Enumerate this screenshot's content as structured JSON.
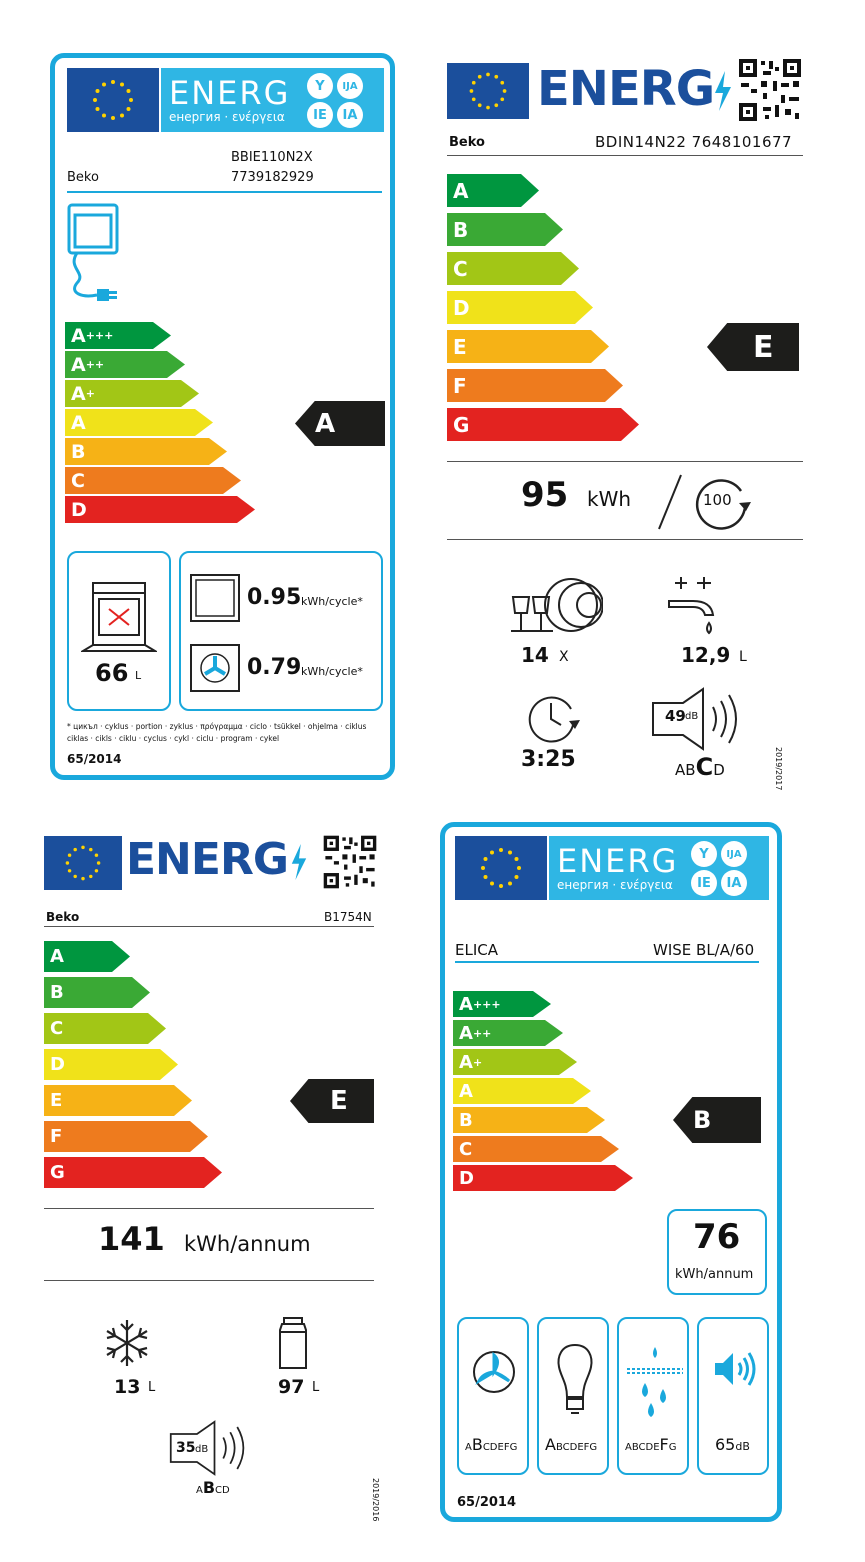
{
  "scale_classes_appliance": [
    "A+++",
    "A++",
    "A+",
    "A",
    "B",
    "C",
    "D"
  ],
  "scale_classes_new": [
    "A",
    "B",
    "C",
    "D",
    "E",
    "F",
    "G"
  ],
  "colors": {
    "cyan": "#1aa8dc",
    "flag": "#1b4f9c",
    "arrow": "#1d1d1b"
  },
  "label1": {
    "header_word": "ENERG",
    "header_sub": "енергия · ενέργεια",
    "header_circles": [
      "Y",
      "IJA",
      "IE",
      "IA"
    ],
    "brand": "Beko",
    "model": "BBIE110N2X",
    "code": "7739182929",
    "rating": "A",
    "volume_value": "66",
    "volume_unit": "L",
    "conv_value": "0.95",
    "fan_value": "0.79",
    "cycle_unit": "kWh/cycle*",
    "footnote_1": "* цикъл · cyklus · portion · zyklus · πρόγραμμα · ciclo · tsükkel · ohjelma · ciklus",
    "footnote_2": "ciklas · cikls · ciklu · cyclus · cykl · ciclu · program · cykel",
    "regulation": "65/2014"
  },
  "label2": {
    "header_word": "ENERG",
    "brand": "Beko",
    "model_code": "BDIN14N22 7648101677",
    "rating": "E",
    "consumption_value": "95",
    "consumption_unit": "kWh",
    "per_cycles": "100",
    "place_settings_value": "14",
    "place_settings_unit": "X",
    "water_value": "12,9",
    "water_unit": "L",
    "duration": "3:25",
    "noise_db": "49",
    "noise_unit": "dB",
    "noise_classes_pre": "AB",
    "noise_class": "C",
    "noise_classes_post": "D",
    "regulation": "2019/2017"
  },
  "label3": {
    "header_word": "ENERG",
    "brand": "Beko",
    "model": "B1754N",
    "rating": "E",
    "consumption_value": "141",
    "consumption_unit": "kWh/annum",
    "freezer_value": "13",
    "freezer_unit": "L",
    "fridge_value": "97",
    "fridge_unit": "L",
    "noise_db": "35",
    "noise_unit": "dB",
    "noise_classes_pre": "A",
    "noise_class": "B",
    "noise_classes_post": "CD",
    "regulation": "2019/2016"
  },
  "label4": {
    "header_word": "ENERG",
    "header_sub": "енергия · ενέργεια",
    "header_circles": [
      "Y",
      "IJA",
      "IE",
      "IA"
    ],
    "brand": "ELICA",
    "model": "WISE BL/A/60",
    "rating": "B",
    "consumption_value": "76",
    "consumption_unit": "kWh/annum",
    "fan_pre": "A",
    "fan_class": "B",
    "fan_post": "CDEFG",
    "light_class": "A",
    "light_post": "BCDEFG",
    "grease_pre": "ABCDE",
    "grease_class": "F",
    "grease_post": "G",
    "noise_value": "65",
    "noise_unit": "dB",
    "regulation": "65/2014"
  }
}
